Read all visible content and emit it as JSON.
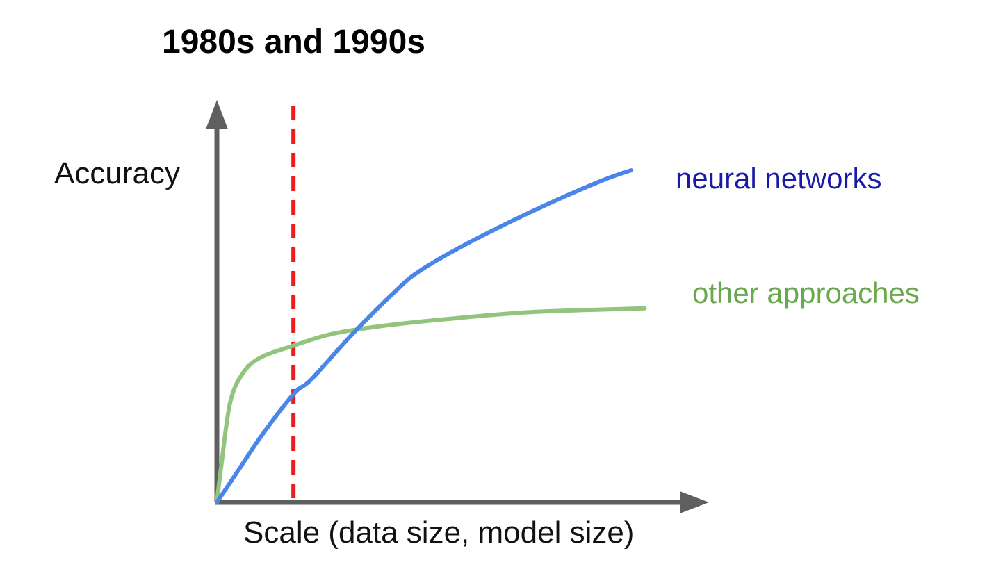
{
  "chart_data": {
    "type": "line",
    "title": "1980s and 1990s",
    "xlabel": "Scale (data size, model size)",
    "ylabel": "Accuracy",
    "grid": false,
    "legend": "inline labels at line ends",
    "xlim": [
      0,
      100
    ],
    "ylim": [
      0,
      100
    ],
    "colors": {
      "axis": "#5f5f5f",
      "marker": "#ee1c1c",
      "neural": "#4a86e8",
      "neural_label": "#1a1aa6",
      "other": "#93c47d",
      "other_label": "#6aa84f"
    },
    "marker_line": {
      "x": 17,
      "style": "dashed"
    },
    "series": [
      {
        "name": "neural networks",
        "x": [
          0,
          5,
          10,
          17,
          21,
          30,
          40,
          45,
          55,
          70,
          85,
          92
        ],
        "y": [
          0,
          9,
          18,
          29,
          33,
          45,
          57,
          62,
          69,
          78,
          86,
          89
        ]
      },
      {
        "name": "other approaches",
        "x": [
          0,
          1,
          3,
          6,
          10,
          17,
          25,
          35,
          50,
          70,
          95
        ],
        "y": [
          0,
          10,
          27,
          35,
          39,
          42,
          45,
          47,
          49,
          51,
          52
        ]
      }
    ]
  }
}
